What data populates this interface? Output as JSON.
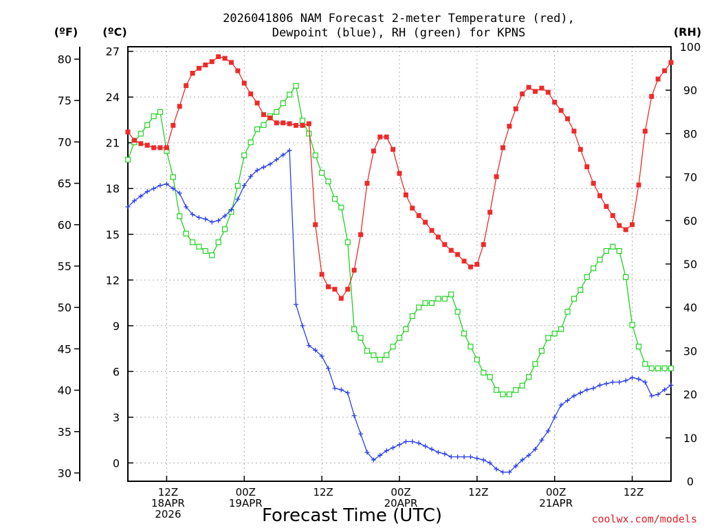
{
  "title_line1": "2026041806 NAM Forecast 2-meter Temperature (red),",
  "title_line2": "Dewpoint (blue), RH (green) for KPNS",
  "units": {
    "f": "(ºF)",
    "c": "(ºC)",
    "rh": "(RH)"
  },
  "xlabel": "Forecast Time (UTC)",
  "credit": "coolwx.com/models",
  "x_ticks": [
    {
      "h": 6,
      "lines": [
        "12Z",
        "18APR",
        "2026"
      ]
    },
    {
      "h": 18,
      "lines": [
        "00Z",
        "19APR"
      ]
    },
    {
      "h": 30,
      "lines": [
        "12Z"
      ]
    },
    {
      "h": 42,
      "lines": [
        "00Z",
        "20APR"
      ]
    },
    {
      "h": 54,
      "lines": [
        "12Z"
      ]
    },
    {
      "h": 66,
      "lines": [
        "00Z",
        "21APR"
      ]
    },
    {
      "h": 78,
      "lines": [
        "12Z"
      ]
    }
  ],
  "f_ticks": [
    "30",
    "35",
    "40",
    "45",
    "50",
    "55",
    "60",
    "65",
    "70",
    "75",
    "80"
  ],
  "c_ticks": [
    "0",
    "3",
    "6",
    "9",
    "12",
    "15",
    "18",
    "21",
    "24",
    "27"
  ],
  "rh_ticks": [
    "0",
    "10",
    "20",
    "30",
    "40",
    "50",
    "60",
    "70",
    "80",
    "90",
    "100"
  ],
  "colors": {
    "temp": "#ee2a2a",
    "dew": "#2a3ee8",
    "rh": "#1ed21e",
    "grid": "#aaaaaa"
  },
  "chart_data": {
    "type": "line",
    "x_unit": "forecast hour from 2026-04-18 06Z",
    "xlim": [
      0,
      84
    ],
    "ylim_f": [
      29,
      81.5
    ],
    "ylim_c": [
      -1.2,
      27.3
    ],
    "ylim_rh": [
      0,
      100
    ],
    "grid": true,
    "series": [
      {
        "name": "Temperature",
        "units": "ºF",
        "x": [
          0,
          1,
          2,
          3,
          4,
          5,
          6,
          7,
          8,
          9,
          10,
          11,
          12,
          13,
          14,
          15,
          16,
          17,
          18,
          19,
          20,
          21,
          22,
          23,
          24,
          25,
          26,
          27,
          28,
          29,
          30,
          31,
          32,
          33,
          34,
          35,
          36,
          37,
          38,
          39,
          40,
          41,
          42,
          43,
          44,
          45,
          46,
          47,
          48,
          49,
          50,
          51,
          52,
          53,
          54,
          55,
          56,
          57,
          58,
          59,
          60,
          61,
          62,
          63,
          64,
          65,
          66,
          67,
          68,
          69,
          70,
          71,
          72,
          73,
          74,
          75,
          76,
          77,
          78,
          79,
          80,
          81,
          82,
          83,
          84
        ],
        "values": [
          71.2,
          70.2,
          69.8,
          69.6,
          69.3,
          69.3,
          69.3,
          72.0,
          74.3,
          76.8,
          78.3,
          78.9,
          79.3,
          79.7,
          80.3,
          80.1,
          79.6,
          78.6,
          77.1,
          75.8,
          74.7,
          73.3,
          72.9,
          72.3,
          72.3,
          72.2,
          72.0,
          72.0,
          72.2,
          60.0,
          54.0,
          52.5,
          52.2,
          51.1,
          52.2,
          54.5,
          58.8,
          65.0,
          68.9,
          70.6,
          70.6,
          69.1,
          66.2,
          63.6,
          62.0,
          61.1,
          60.3,
          59.3,
          58.5,
          57.6,
          56.9,
          56.4,
          55.6,
          54.9,
          55.2,
          57.6,
          61.5,
          65.8,
          69.3,
          71.9,
          74.0,
          75.8,
          76.6,
          76.1,
          76.5,
          76.0,
          74.8,
          73.8,
          72.8,
          71.3,
          69.1,
          67.0,
          65.0,
          63.5,
          62.2,
          61.1,
          59.9,
          59.4,
          60.0,
          64.8,
          71.3,
          75.5,
          77.6,
          78.6,
          79.6
        ]
      },
      {
        "name": "Dewpoint",
        "units": "ºC",
        "x": [
          0,
          1,
          2,
          3,
          4,
          5,
          6,
          7,
          8,
          9,
          10,
          11,
          12,
          13,
          14,
          15,
          16,
          17,
          18,
          19,
          20,
          21,
          22,
          23,
          24,
          25,
          26,
          27,
          28,
          29,
          30,
          31,
          32,
          33,
          34,
          35,
          36,
          37,
          38,
          39,
          40,
          41,
          42,
          43,
          44,
          45,
          46,
          47,
          48,
          49,
          50,
          51,
          52,
          53,
          54,
          55,
          56,
          57,
          58,
          59,
          60,
          61,
          62,
          63,
          64,
          65,
          66,
          67,
          68,
          69,
          70,
          71,
          72,
          73,
          74,
          75,
          76,
          77,
          78,
          79,
          80,
          81,
          82,
          83,
          84
        ],
        "values": [
          16.8,
          17.2,
          17.5,
          17.8,
          18.0,
          18.2,
          18.3,
          18.0,
          17.7,
          16.8,
          16.3,
          16.1,
          16.0,
          15.8,
          15.9,
          16.2,
          16.6,
          17.3,
          18.2,
          18.8,
          19.2,
          19.4,
          19.6,
          19.9,
          20.2,
          20.5,
          10.4,
          9.0,
          7.7,
          7.4,
          7.0,
          6.2,
          4.9,
          4.8,
          4.6,
          3.1,
          1.9,
          0.7,
          0.2,
          0.5,
          0.8,
          1.0,
          1.2,
          1.4,
          1.4,
          1.3,
          1.1,
          0.9,
          0.7,
          0.6,
          0.4,
          0.4,
          0.4,
          0.4,
          0.3,
          0.2,
          0.0,
          -0.4,
          -0.6,
          -0.6,
          -0.2,
          0.2,
          0.5,
          0.9,
          1.5,
          2.1,
          3.0,
          3.8,
          4.1,
          4.4,
          4.6,
          4.8,
          4.9,
          5.1,
          5.2,
          5.3,
          5.3,
          5.4,
          5.6,
          5.5,
          5.3,
          4.4,
          4.5,
          4.8,
          5.1
        ]
      },
      {
        "name": "RH",
        "units": "%",
        "x": [
          0,
          1,
          2,
          3,
          4,
          5,
          6,
          7,
          8,
          9,
          10,
          11,
          12,
          13,
          14,
          15,
          16,
          17,
          18,
          19,
          20,
          21,
          22,
          23,
          24,
          25,
          26,
          27,
          28,
          29,
          30,
          31,
          32,
          33,
          34,
          35,
          36,
          37,
          38,
          39,
          40,
          41,
          42,
          43,
          44,
          45,
          46,
          47,
          48,
          49,
          50,
          51,
          52,
          53,
          54,
          55,
          56,
          57,
          58,
          59,
          60,
          61,
          62,
          63,
          64,
          65,
          66,
          67,
          68,
          69,
          70,
          71,
          72,
          73,
          74,
          75,
          76,
          77,
          78,
          79,
          80,
          81,
          82,
          83,
          84
        ],
        "values": [
          74,
          78,
          80,
          82,
          84,
          85,
          76,
          70,
          61,
          57,
          55,
          54,
          53,
          52,
          55,
          58,
          62,
          68,
          75,
          78,
          81,
          82,
          84,
          85,
          87,
          89,
          91,
          83,
          80,
          75,
          71,
          69,
          65,
          63,
          55,
          35,
          33,
          30,
          29,
          28,
          29,
          31,
          33,
          35,
          38,
          40,
          41,
          41,
          42,
          42,
          43,
          39,
          34,
          31,
          28,
          25,
          24,
          21,
          20,
          20,
          21,
          22,
          24,
          27,
          30,
          33,
          34,
          35,
          39,
          42,
          44,
          47,
          49,
          51,
          53,
          54,
          53,
          47,
          36,
          31,
          27,
          26,
          26,
          26,
          26
        ]
      }
    ]
  }
}
